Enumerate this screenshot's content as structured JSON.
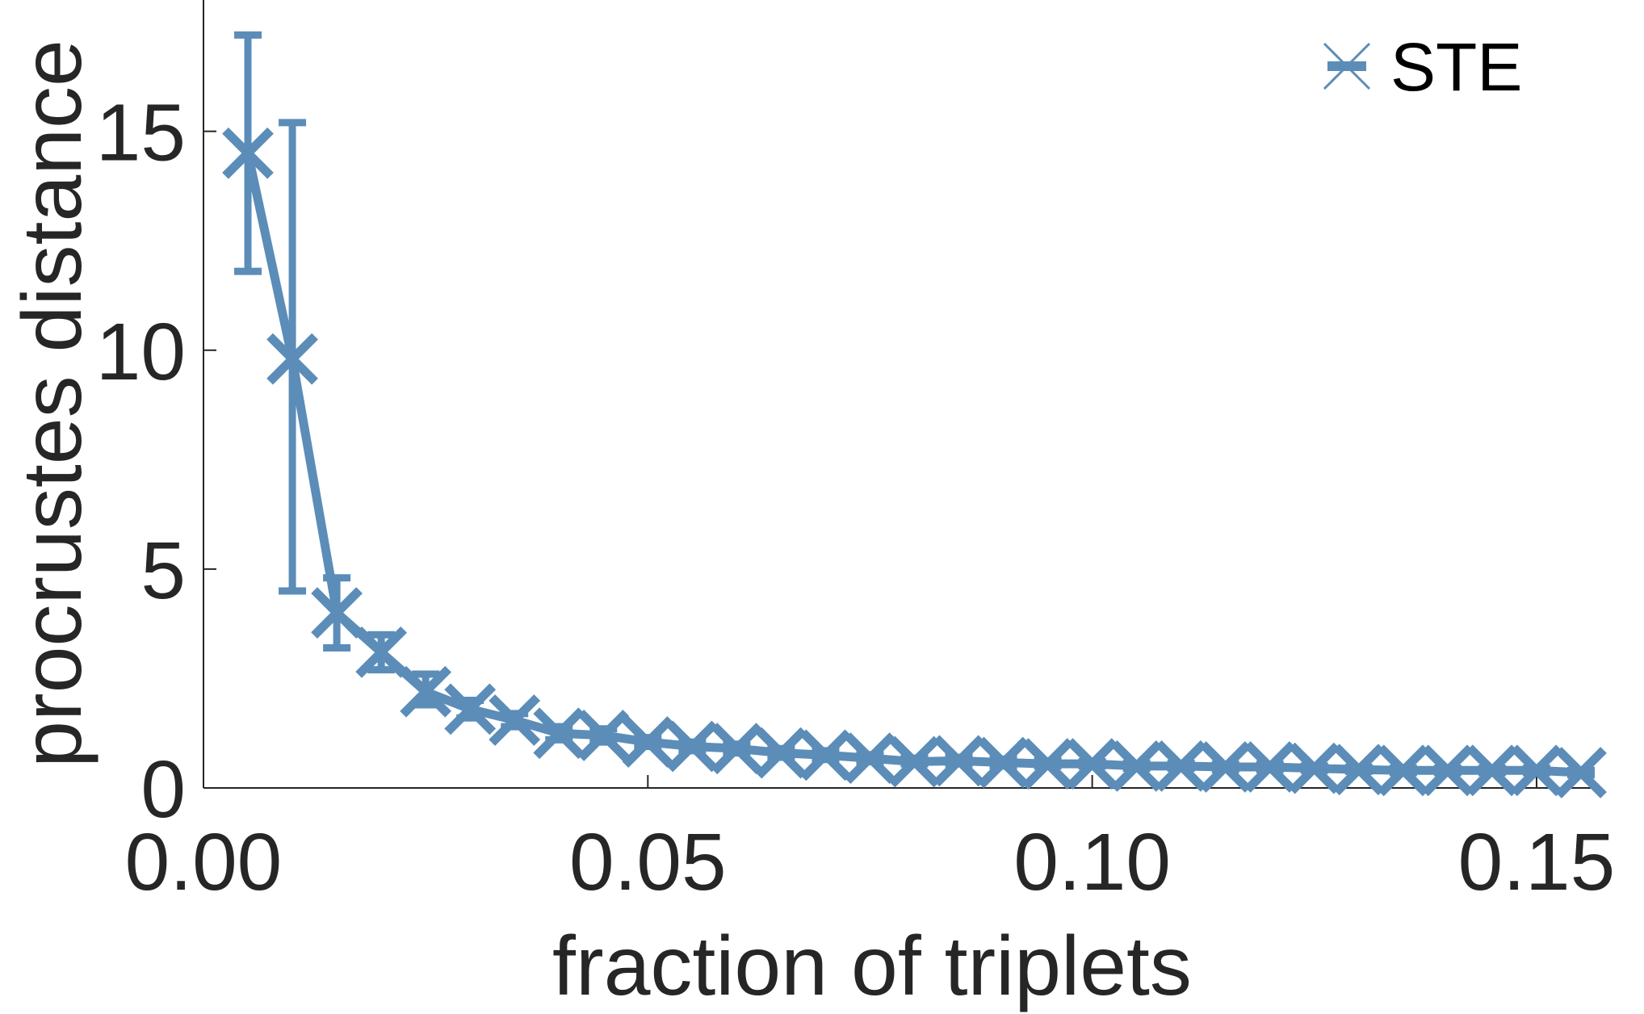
{
  "colors": {
    "series": "#5b8db8",
    "axis": "#262626",
    "background": "#ffffff"
  },
  "chart_data": {
    "type": "line",
    "title": "",
    "xlabel": "fraction of triplets",
    "ylabel": "procrustes distance",
    "xlim": [
      0.0,
      0.157
    ],
    "ylim": [
      0,
      18
    ],
    "xticks": [
      0.0,
      0.05,
      0.1,
      0.15
    ],
    "xtick_labels": [
      "0.00",
      "0.05",
      "0.10",
      "0.15"
    ],
    "yticks": [
      0,
      5,
      10,
      15
    ],
    "ytick_labels": [
      "0",
      "5",
      "10",
      "15"
    ],
    "grid": false,
    "legend": {
      "position": "top-right",
      "entries": [
        "STE"
      ]
    },
    "marker": "x",
    "series": [
      {
        "name": "STE",
        "x": [
          0.005,
          0.01,
          0.015,
          0.02,
          0.025,
          0.03,
          0.035,
          0.04,
          0.045,
          0.05,
          0.055,
          0.06,
          0.065,
          0.07,
          0.075,
          0.08,
          0.085,
          0.09,
          0.095,
          0.1,
          0.105,
          0.11,
          0.115,
          0.12,
          0.125,
          0.13,
          0.135,
          0.14,
          0.145,
          0.15,
          0.155
        ],
        "y": [
          14.5,
          9.8,
          4.0,
          3.1,
          2.2,
          1.8,
          1.55,
          1.25,
          1.2,
          1.05,
          0.95,
          0.9,
          0.8,
          0.75,
          0.68,
          0.6,
          0.62,
          0.58,
          0.55,
          0.55,
          0.5,
          0.5,
          0.48,
          0.48,
          0.45,
          0.42,
          0.4,
          0.4,
          0.4,
          0.4,
          0.35
        ],
        "err_low": [
          11.8,
          4.5,
          3.2,
          2.7,
          1.9,
          1.6,
          1.4,
          1.1,
          1.05,
          0.95,
          0.85,
          0.8,
          0.7,
          0.65,
          0.6,
          0.55,
          0.55,
          0.5,
          0.5,
          0.5,
          0.45,
          0.45,
          0.42,
          0.42,
          0.4,
          0.38,
          0.35,
          0.35,
          0.35,
          0.35,
          0.3
        ],
        "err_high": [
          17.2,
          15.2,
          4.8,
          3.5,
          2.6,
          2.0,
          1.7,
          1.4,
          1.35,
          1.15,
          1.05,
          1.0,
          0.9,
          0.85,
          0.76,
          0.68,
          0.7,
          0.66,
          0.62,
          0.6,
          0.56,
          0.56,
          0.54,
          0.54,
          0.5,
          0.47,
          0.45,
          0.45,
          0.45,
          0.45,
          0.4
        ]
      }
    ]
  }
}
